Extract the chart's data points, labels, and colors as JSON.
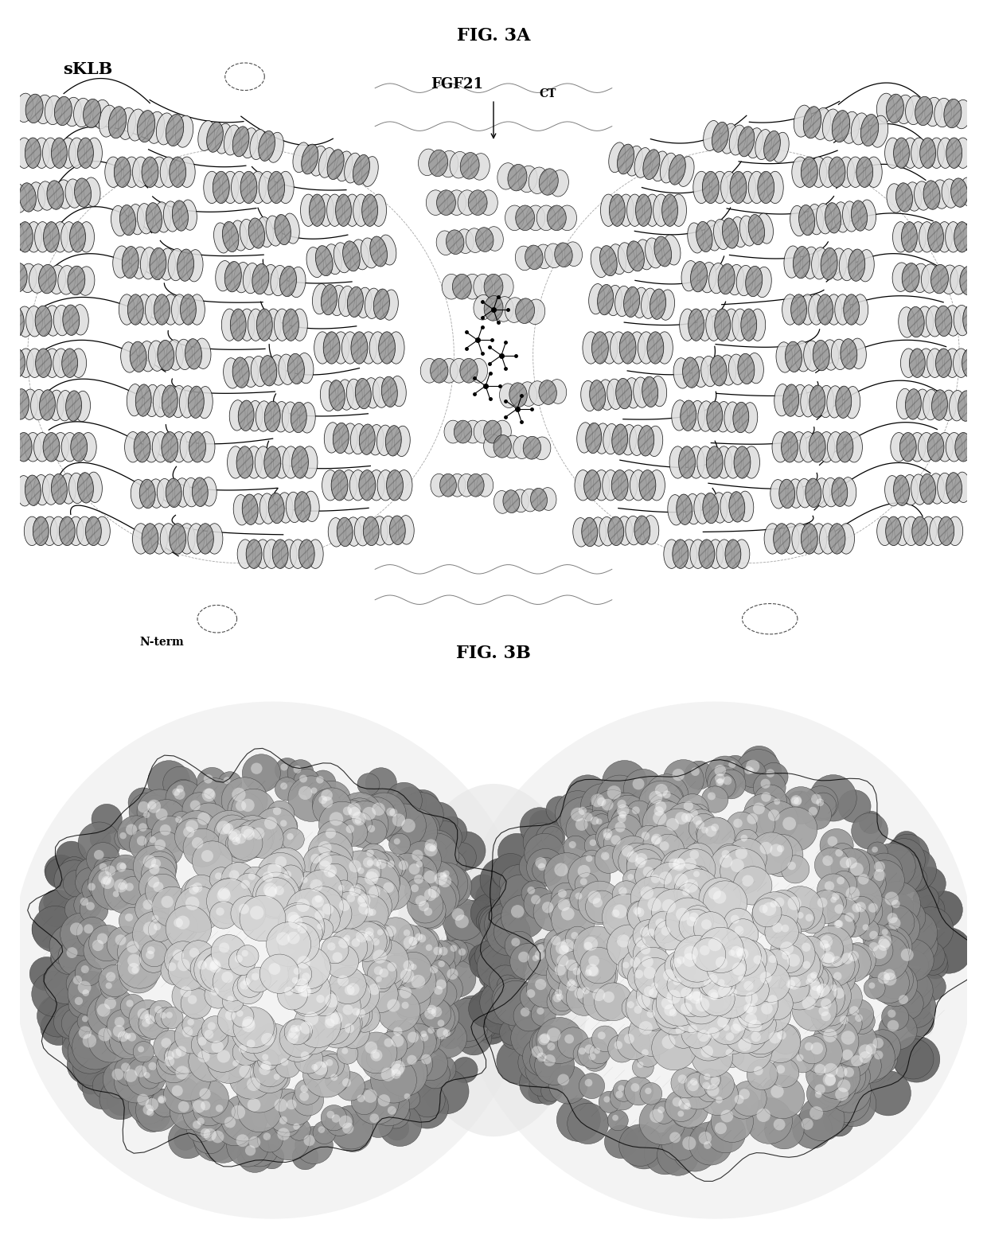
{
  "fig3a_title": "FIG. 3A",
  "fig3b_title": "FIG. 3B",
  "label_sklb": "sKLB",
  "label_fgf21": "FGF21",
  "label_fgf21_sub": "CT",
  "label_nterm": "N-term",
  "bg_color": "#ffffff",
  "title_fontsize": 16,
  "label_fontsize": 13,
  "figsize": [
    12.4,
    15.67
  ],
  "dpi": 100
}
